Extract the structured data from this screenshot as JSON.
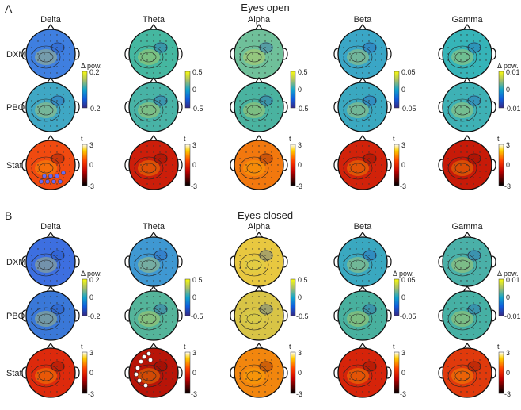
{
  "panels": [
    {
      "letter": "A",
      "title": "Eyes open",
      "bands": [
        "Delta",
        "Theta",
        "Alpha",
        "Beta",
        "Gamma"
      ],
      "rows": [
        "DXM",
        "PBO",
        "Stat"
      ],
      "colorbars": [
        {
          "label": "Δ pow.",
          "max": "0.2",
          "mid": "",
          "min": "-0.2"
        },
        {
          "label": "",
          "max": "0.5",
          "mid": "0",
          "min": "-0.5"
        },
        {
          "label": "",
          "max": "0.5",
          "mid": "0",
          "min": "-0.5"
        },
        {
          "label": "",
          "max": "0.05",
          "mid": "0",
          "min": "-0.05"
        },
        {
          "label": "Δ pow.",
          "max": "0.01",
          "mid": "0",
          "min": "-0.01"
        }
      ],
      "stat_colorbar": {
        "label": "t",
        "max": "3",
        "mid": "0",
        "min": "-3"
      },
      "maps": {
        "DXM": [
          "#3f7fe0",
          "#45b7a0",
          "#6fc09a",
          "#3aa6c6",
          "#36b4b8"
        ],
        "PBO": [
          "#3fa7c4",
          "#48b3a6",
          "#4ab3a0",
          "#3aa8c0",
          "#3eb1b5"
        ],
        "Stat": [
          "#f04a10",
          "#cc1e0a",
          "#f2780e",
          "#d1220a",
          "#c71a08"
        ]
      },
      "significant_channels": [
        "Delta"
      ]
    },
    {
      "letter": "B",
      "title": "Eyes closed",
      "bands": [
        "Delta",
        "Theta",
        "Alpha",
        "Beta",
        "Gamma"
      ],
      "rows": [
        "DXM",
        "PBO",
        "Stat"
      ],
      "colorbars": [
        {
          "label": "Δ pow.",
          "max": "0.2",
          "mid": "0",
          "min": "-0.2"
        },
        {
          "label": "",
          "max": "0.5",
          "mid": "0",
          "min": "-0.5"
        },
        {
          "label": "",
          "max": "0.5",
          "mid": "0",
          "min": "-0.5"
        },
        {
          "label": "Δ pow.",
          "max": "0.05",
          "mid": "0",
          "min": "-0.05"
        },
        {
          "label": "Δ pow.",
          "max": "0.01",
          "mid": "0",
          "min": "-0.01"
        }
      ],
      "stat_colorbar": {
        "label": "t",
        "max": "3",
        "mid": "0",
        "min": "-3"
      },
      "maps": {
        "DXM": [
          "#3d6fe0",
          "#3f98d2",
          "#e8c840",
          "#3aa8c0",
          "#4ab0a8"
        ],
        "PBO": [
          "#3a78d8",
          "#54b49a",
          "#d8c446",
          "#48b09e",
          "#46b0a4"
        ],
        "Stat": [
          "#dd2a0c",
          "#b81408",
          "#f2860e",
          "#d6240a",
          "#e03a0c"
        ]
      },
      "significant_channels": [
        "Theta"
      ]
    }
  ]
}
